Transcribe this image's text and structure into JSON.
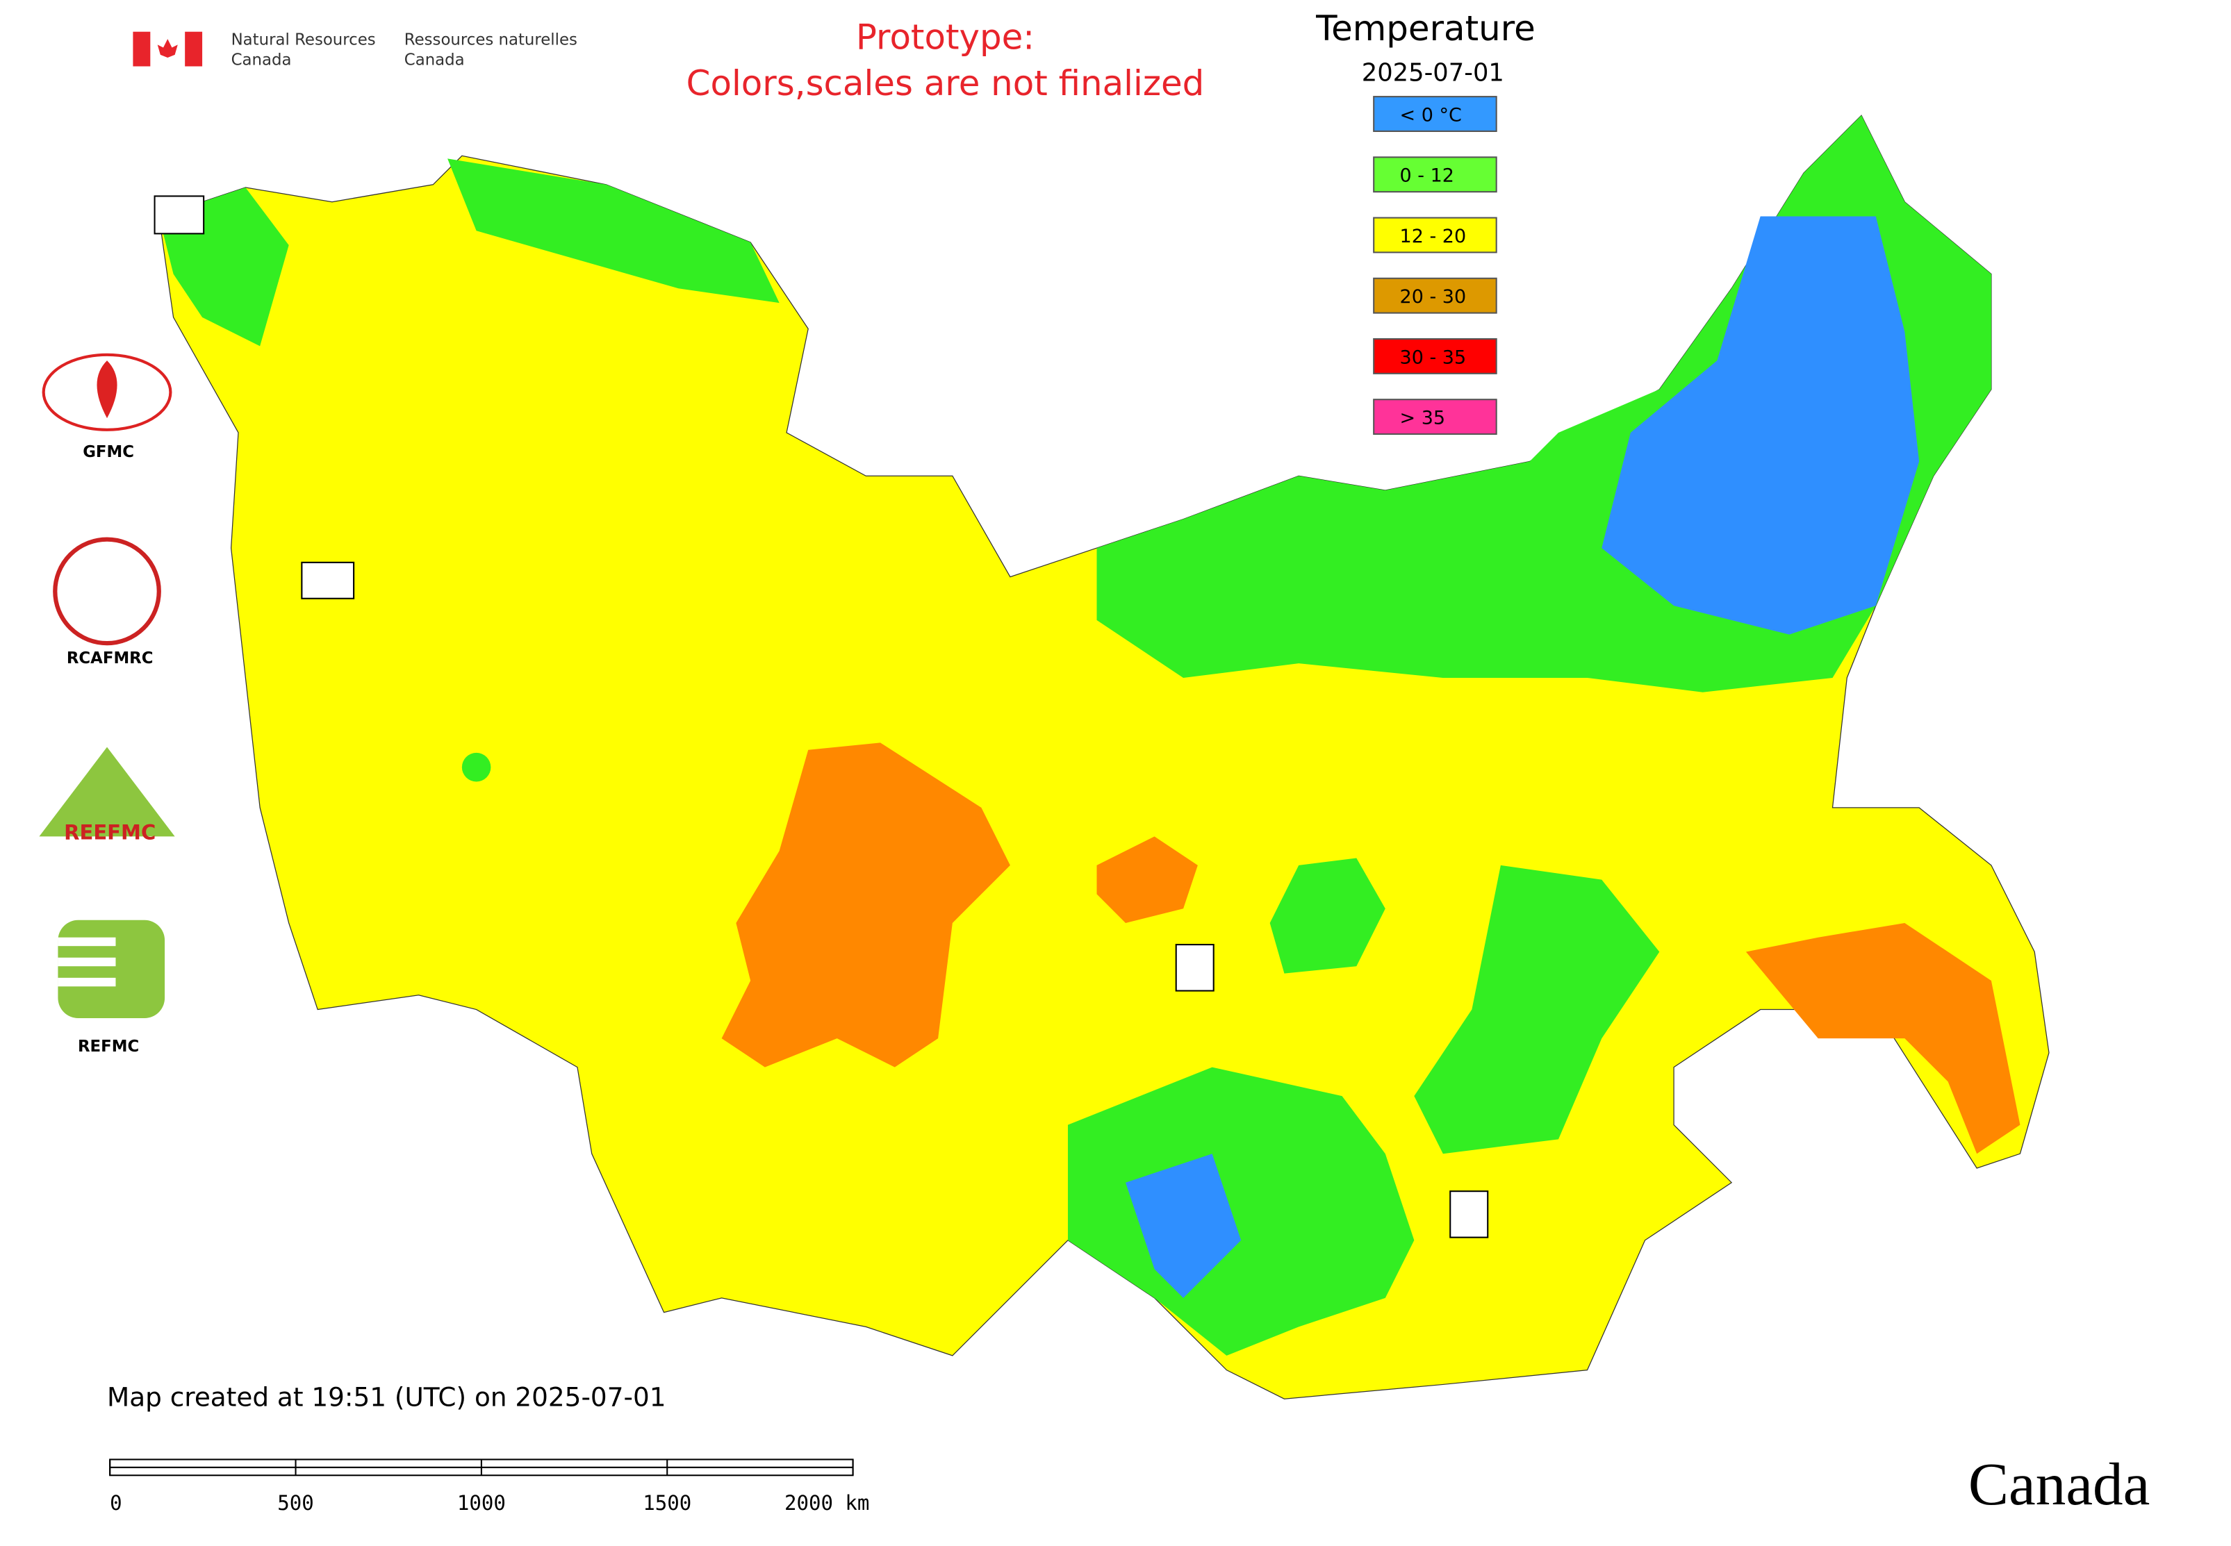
{
  "header": {
    "gov_en": [
      "Natural Resources",
      "Canada"
    ],
    "gov_fr": [
      "Ressources naturelles",
      "Canada"
    ]
  },
  "notice": [
    "Prototype:",
    "Colors,scales are not finalized"
  ],
  "legend": {
    "title": "Temperature",
    "date": "2025-07-01",
    "items": [
      {
        "label": "< 0 °C",
        "color": "#3399ff"
      },
      {
        "label": "0 - 12",
        "color": "#66ff33"
      },
      {
        "label": "12 - 20",
        "color": "#ffff00"
      },
      {
        "label": "20 - 30",
        "color": "#dd9900"
      },
      {
        "label": "30 - 35",
        "color": "#ff0000"
      },
      {
        "label": "> 35",
        "color": "#ff3399"
      }
    ]
  },
  "logos": [
    "GFMC",
    "RCAFMRC",
    "REEFMC",
    "REFMC"
  ],
  "footer": "Map created at 19:51 (UTC) on 2025-07-01",
  "scale_bar": [
    "0",
    "500",
    "1000",
    "1500",
    "2000 km"
  ],
  "wordmark": "Canada"
}
